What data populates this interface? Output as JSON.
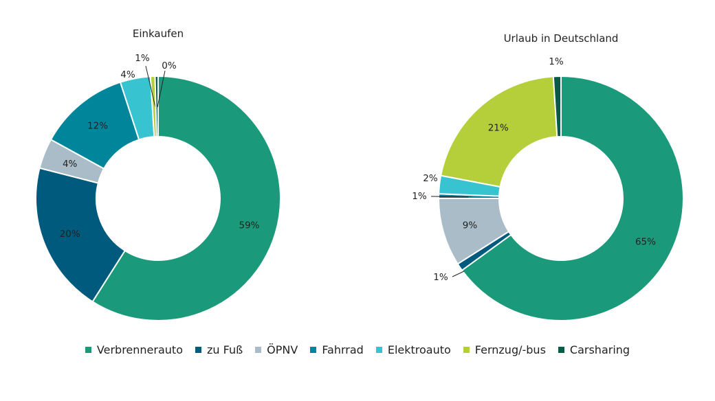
{
  "colors": {
    "Verbrennerauto": "#1a9a7a",
    "zu Fuß": "#005a7d",
    "ÖPNV": "#a9bcc8",
    "Fahrrad": "#00859a",
    "Elektroauto": "#37c3cf",
    "Fernzug/-bus": "#b4cf3a",
    "Carsharing": "#0b5a48"
  },
  "legend": [
    "Verbrennerauto",
    "zu Fuß",
    "ÖPNV",
    "Fahrrad",
    "Elektroauto",
    "Fernzug/-bus",
    "Carsharing"
  ],
  "chart_data": [
    {
      "type": "pie",
      "title": "Einkaufen",
      "slices": [
        {
          "category": "Verbrennerauto",
          "value": 59,
          "label": "59%"
        },
        {
          "category": "zu Fuß",
          "value": 20,
          "label": "20%"
        },
        {
          "category": "ÖPNV",
          "value": 4,
          "label": "4%"
        },
        {
          "category": "Fahrrad",
          "value": 12,
          "label": "12%"
        },
        {
          "category": "Elektroauto",
          "value": 4,
          "label": "4%"
        },
        {
          "category": "Fernzug/-bus",
          "value": 0.6,
          "label": "1%"
        },
        {
          "category": "Carsharing",
          "value": 0.4,
          "label": "0%"
        }
      ]
    },
    {
      "type": "pie",
      "title": "Urlaub in Deutschland",
      "slices": [
        {
          "category": "Verbrennerauto",
          "value": 65,
          "label": "65%"
        },
        {
          "category": "zu Fuß",
          "value": 1,
          "label": "1%"
        },
        {
          "category": "ÖPNV",
          "value": 9,
          "label": "9%"
        },
        {
          "category": "Fahrrad",
          "value": 0.6,
          "label": "1%"
        },
        {
          "category": "Elektroauto",
          "value": 2.4,
          "label": "2%"
        },
        {
          "category": "Fernzug/-bus",
          "value": 21,
          "label": "21%"
        },
        {
          "category": "Carsharing",
          "value": 1,
          "label": "1%"
        }
      ]
    }
  ]
}
